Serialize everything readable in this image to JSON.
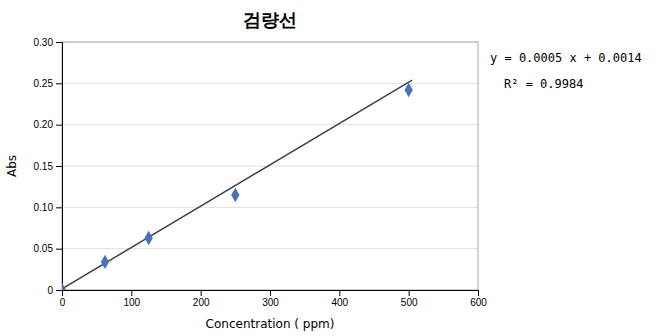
{
  "chart_data": {
    "type": "scatter",
    "title": "검량선",
    "xlabel": "Concentration ( ppm)",
    "ylabel": "Abs",
    "series": [
      {
        "type": "scatter",
        "color": "#4472C4",
        "marker": "diamond",
        "x": [
          0,
          62,
          125,
          250,
          500
        ],
        "values": [
          0.0,
          0.034,
          0.063,
          0.115,
          0.242
        ]
      },
      {
        "type": "line",
        "color": "#404040",
        "line_style": "solid",
        "x": [
          0,
          505
        ],
        "values": [
          0.0014,
          0.2539
        ]
      }
    ],
    "xlim": [
      0,
      600
    ],
    "ylim": [
      0,
      0.3
    ],
    "xticks": [
      0,
      100,
      200,
      300,
      400,
      500,
      600
    ],
    "yticks": [
      0,
      0.05,
      {
        "value": 0.1,
        "label": "0.10"
      },
      0.15,
      {
        "value": 0.2,
        "label": "0.20"
      },
      0.25,
      {
        "value": 0.3,
        "label": "0.30"
      }
    ],
    "grid": "y",
    "annotations": [
      "y = 0.0005 x + 0.0014",
      "R² = 0.9984"
    ]
  }
}
